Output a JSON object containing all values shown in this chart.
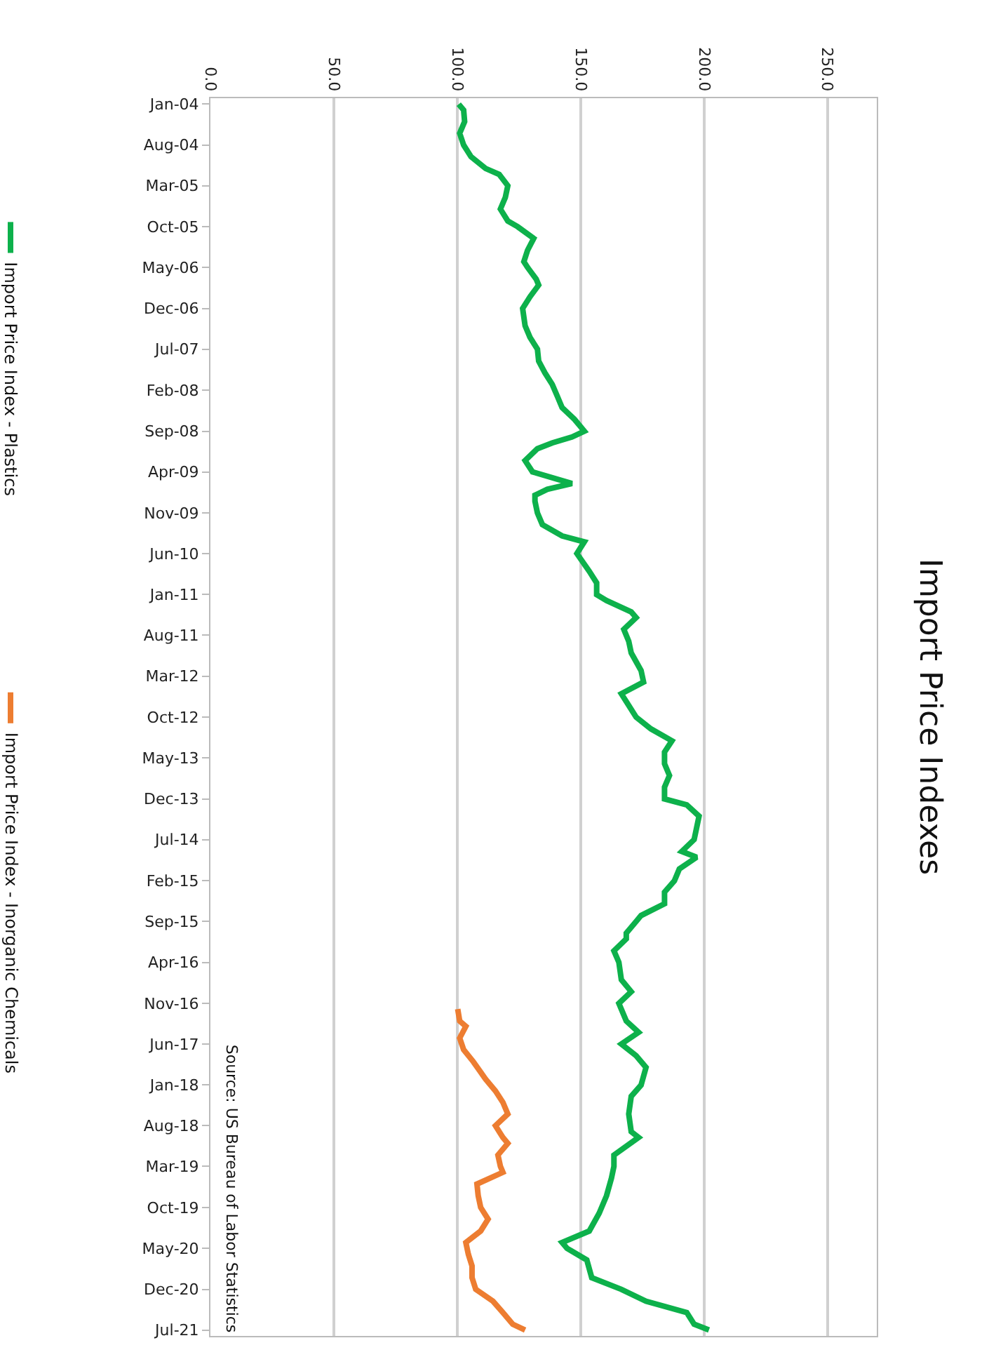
{
  "chart_data": {
    "type": "line",
    "orientation": "horizontal",
    "title": "Import Price Indexes",
    "annotations": [
      "Source: US Bureau of Labor Statistics"
    ],
    "series": [
      {
        "name": "Import Price Index - Plastics",
        "color": "#0db14b",
        "x": [
          "2004-01",
          "2004-02",
          "2004-04",
          "2004-06",
          "2004-08",
          "2004-10",
          "2004-12",
          "2005-01",
          "2005-03",
          "2005-05",
          "2005-07",
          "2005-09",
          "2005-10",
          "2005-12",
          "2006-02",
          "2006-04",
          "2006-05",
          "2006-07",
          "2006-08",
          "2006-10",
          "2006-12",
          "2007-03",
          "2007-05",
          "2007-07",
          "2007-09",
          "2007-11",
          "2008-01",
          "2008-03",
          "2008-05",
          "2008-07",
          "2008-09",
          "2008-10",
          "2008-11",
          "2008-12",
          "2009-02",
          "2009-04",
          "2009-06",
          "2009-07",
          "2009-08",
          "2009-09",
          "2009-11",
          "2010-01",
          "2010-03",
          "2010-04",
          "2010-05",
          "2010-06",
          "2010-09",
          "2010-11",
          "2011-01",
          "2011-02",
          "2011-04",
          "2011-05",
          "2011-07",
          "2011-09",
          "2011-11",
          "2012-02",
          "2012-04",
          "2012-06",
          "2012-08",
          "2012-10",
          "2012-12",
          "2013-02",
          "2013-04",
          "2013-06",
          "2013-08",
          "2013-10",
          "2013-12",
          "2014-01",
          "2014-03",
          "2014-05",
          "2014-07",
          "2014-09",
          "2014-10",
          "2014-12",
          "2015-02",
          "2015-04",
          "2015-06",
          "2015-08",
          "2015-09",
          "2015-11",
          "2015-12",
          "2016-02",
          "2016-04",
          "2016-07",
          "2016-09",
          "2016-11",
          "2017-02",
          "2017-04",
          "2017-06",
          "2017-08",
          "2017-10",
          "2018-01",
          "2018-03",
          "2018-06",
          "2018-09",
          "2018-10",
          "2019-01",
          "2019-03",
          "2019-05",
          "2019-08",
          "2019-11",
          "2020-02",
          "2020-04",
          "2020-05",
          "2020-07",
          "2020-10",
          "2020-12",
          "2021-02",
          "2021-04",
          "2021-06",
          "2021-07"
        ],
        "values": [
          100.6,
          102.6,
          103,
          101,
          102.6,
          105.6,
          111.5,
          117,
          120.5,
          119.5,
          117.5,
          120.5,
          124.5,
          131,
          128.5,
          127,
          128.5,
          132,
          133,
          129.5,
          126.5,
          127.5,
          129.5,
          132.5,
          133,
          135.5,
          138.5,
          140.5,
          142.5,
          147.5,
          151.5,
          146.5,
          138.5,
          132.5,
          127.5,
          130.5,
          146.5,
          136.5,
          131.5,
          131.5,
          132.5,
          134.5,
          142.5,
          151.5,
          150,
          148.5,
          153.5,
          156.5,
          156.5,
          160.5,
          170.5,
          172.5,
          167.5,
          169.5,
          170.5,
          174.5,
          175.5,
          166.5,
          169.5,
          172.5,
          178.5,
          187,
          184,
          184,
          186,
          184,
          184,
          193,
          198,
          197,
          196,
          191,
          197,
          190,
          188,
          184,
          184,
          174.5,
          172.5,
          168.5,
          168.5,
          163.5,
          165.5,
          166.5,
          170.5,
          165.5,
          168.5,
          173.5,
          166.5,
          172.5,
          176.5,
          174.5,
          170.5,
          169.5,
          170.5,
          173.5,
          163.5,
          163.5,
          162.5,
          160.5,
          157.5,
          153.5,
          142.5,
          144.5,
          152.5,
          154.5,
          166.5,
          176.5,
          193,
          196,
          202
        ]
      },
      {
        "name": "Import Price Index - Inorganic Chemicals",
        "color": "#ed7d31",
        "x": [
          "2016-12",
          "2017-02",
          "2017-03",
          "2017-05",
          "2017-07",
          "2017-09",
          "2017-12",
          "2018-02",
          "2018-04",
          "2018-06",
          "2018-08",
          "2018-10",
          "2018-11",
          "2019-01",
          "2019-03",
          "2019-04",
          "2019-06",
          "2019-08",
          "2019-10",
          "2019-12",
          "2020-02",
          "2020-04",
          "2020-06",
          "2020-08",
          "2020-10",
          "2020-12",
          "2021-02",
          "2021-04",
          "2021-06",
          "2021-07"
        ],
        "values": [
          100.2,
          101,
          103.5,
          101,
          102.6,
          106.5,
          111.5,
          115.5,
          118.5,
          120.5,
          115.5,
          118.5,
          120.5,
          116.5,
          117.5,
          118.5,
          108,
          108.5,
          109.5,
          112.5,
          109.5,
          103.5,
          104.5,
          106,
          106,
          107.5,
          114.5,
          118.5,
          122.5,
          127.5
        ]
      }
    ],
    "xlim": [
      0,
      270
    ],
    "xticks": [
      {
        "value": 0,
        "label": "0.0"
      },
      {
        "value": 50,
        "label": "50.0"
      },
      {
        "value": 100,
        "label": "100.0"
      },
      {
        "value": 150,
        "label": "150.0"
      },
      {
        "value": 200,
        "label": "200.0"
      },
      {
        "value": 250,
        "label": "250.0"
      }
    ],
    "ylim": [
      "2021-08",
      "2003-12"
    ],
    "yticks": [
      {
        "value": "2004-01",
        "label": "Jan-04"
      },
      {
        "value": "2004-08",
        "label": "Aug-04"
      },
      {
        "value": "2005-03",
        "label": "Mar-05"
      },
      {
        "value": "2005-10",
        "label": "Oct-05"
      },
      {
        "value": "2006-05",
        "label": "May-06"
      },
      {
        "value": "2006-12",
        "label": "Dec-06"
      },
      {
        "value": "2007-07",
        "label": "Jul-07"
      },
      {
        "value": "2008-02",
        "label": "Feb-08"
      },
      {
        "value": "2008-09",
        "label": "Sep-08"
      },
      {
        "value": "2009-04",
        "label": "Apr-09"
      },
      {
        "value": "2009-11",
        "label": "Nov-09"
      },
      {
        "value": "2010-06",
        "label": "Jun-10"
      },
      {
        "value": "2011-01",
        "label": "Jan-11"
      },
      {
        "value": "2011-08",
        "label": "Aug-11"
      },
      {
        "value": "2012-03",
        "label": "Mar-12"
      },
      {
        "value": "2012-10",
        "label": "Oct-12"
      },
      {
        "value": "2013-05",
        "label": "May-13"
      },
      {
        "value": "2013-12",
        "label": "Dec-13"
      },
      {
        "value": "2014-07",
        "label": "Jul-14"
      },
      {
        "value": "2015-02",
        "label": "Feb-15"
      },
      {
        "value": "2015-09",
        "label": "Sep-15"
      },
      {
        "value": "2016-04",
        "label": "Apr-16"
      },
      {
        "value": "2016-11",
        "label": "Nov-16"
      },
      {
        "value": "2017-06",
        "label": "Jun-17"
      },
      {
        "value": "2018-01",
        "label": "Jan-18"
      },
      {
        "value": "2018-08",
        "label": "Aug-18"
      },
      {
        "value": "2019-03",
        "label": "Mar-19"
      },
      {
        "value": "2019-10",
        "label": "Oct-19"
      },
      {
        "value": "2020-05",
        "label": "May-20"
      },
      {
        "value": "2020-12",
        "label": "Dec-20"
      },
      {
        "value": "2021-07",
        "label": "Jul-21"
      }
    ],
    "grid": "x",
    "legend": "left",
    "marker": "none",
    "line_style": "solid"
  }
}
